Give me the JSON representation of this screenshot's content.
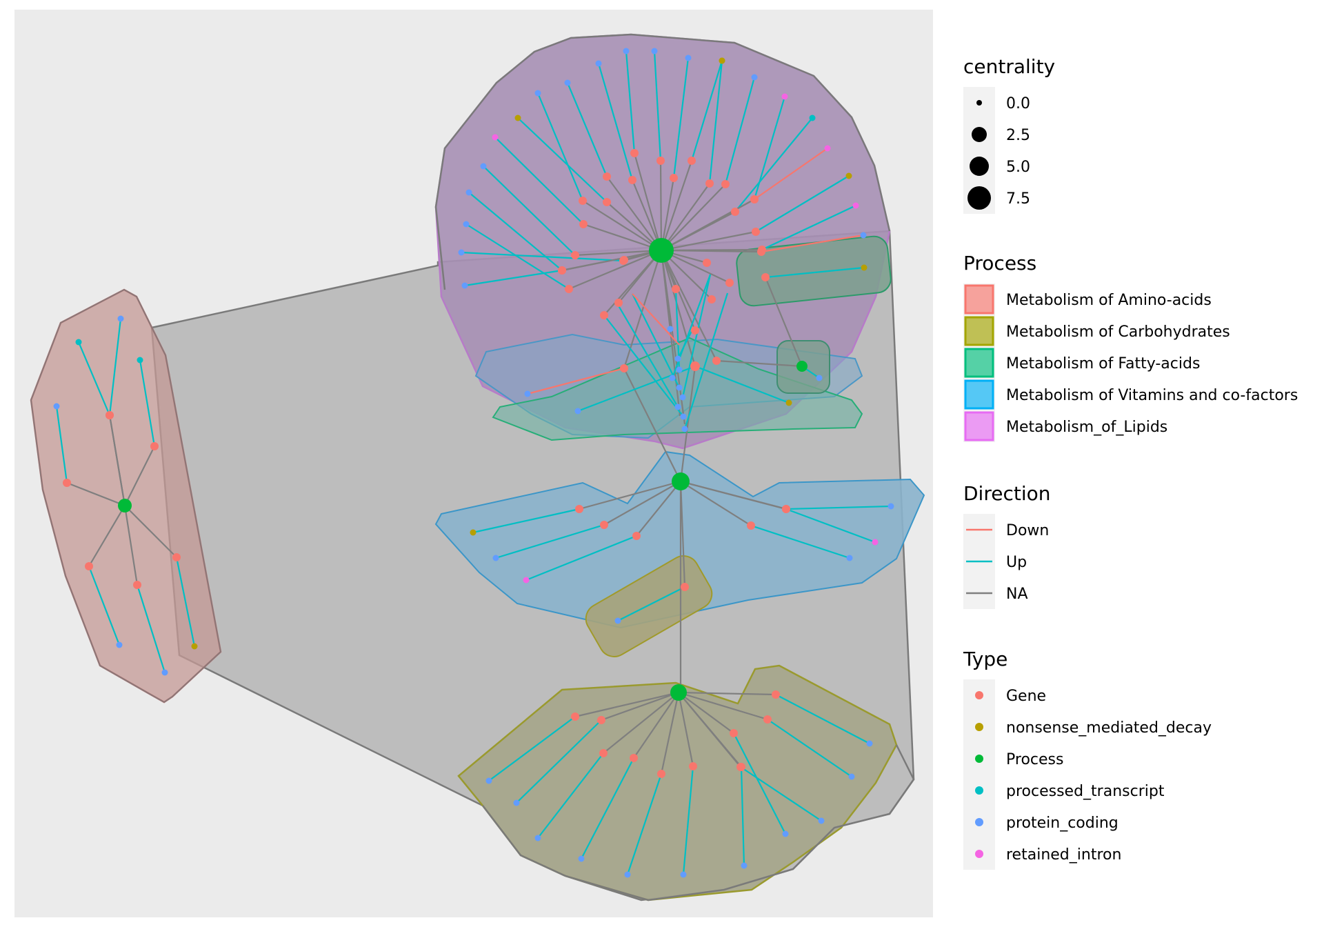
{
  "colors": {
    "panel_bg": "#EBEBEB",
    "key_bg": "#F2F2F2",
    "outer_hull": "#9E9E9E",
    "amino": "#F8766D",
    "carbo": "#A3A500",
    "fatty": "#00BF7D",
    "vitamins": "#00B0F6",
    "lipids": "#E76BF3",
    "node_gene": "#F8766D",
    "node_nmd": "#B79F00",
    "node_process": "#00BA38",
    "node_processed": "#00BFC4",
    "node_protein": "#619CFF",
    "node_retained": "#F564E3",
    "edge_down": "#F8766D",
    "edge_up": "#00BFC4",
    "edge_na": "#7F7F7F"
  },
  "legend": {
    "centrality": {
      "title": "centrality",
      "labels": [
        "0.0",
        "2.5",
        "5.0",
        "7.5"
      ]
    },
    "process": {
      "title": "Process",
      "items": [
        {
          "label": "Metabolism of Amino-acids",
          "color": "#F8766D"
        },
        {
          "label": "Metabolism of Carbohydrates",
          "color": "#A3A500"
        },
        {
          "label": "Metabolism of Fatty-acids",
          "color": "#00BF7D"
        },
        {
          "label": "Metabolism of Vitamins and co-factors",
          "color": "#00B0F6"
        },
        {
          "label": "Metabolism_of_Lipids",
          "color": "#E76BF3"
        }
      ]
    },
    "direction": {
      "title": "Direction",
      "items": [
        {
          "label": "Down",
          "color": "#F8766D"
        },
        {
          "label": "Up",
          "color": "#00BFC4"
        },
        {
          "label": "NA",
          "color": "#7F7F7F"
        }
      ]
    },
    "type": {
      "title": "Type",
      "items": [
        {
          "label": "Gene",
          "color": "#F8766D"
        },
        {
          "label": "nonsense_mediated_decay",
          "color": "#B79F00"
        },
        {
          "label": "Process",
          "color": "#00BA38"
        },
        {
          "label": "processed_transcript",
          "color": "#00BFC4"
        },
        {
          "label": "protein_coding",
          "color": "#619CFF"
        },
        {
          "label": "retained_intron",
          "color": "#F564E3"
        }
      ]
    }
  }
}
